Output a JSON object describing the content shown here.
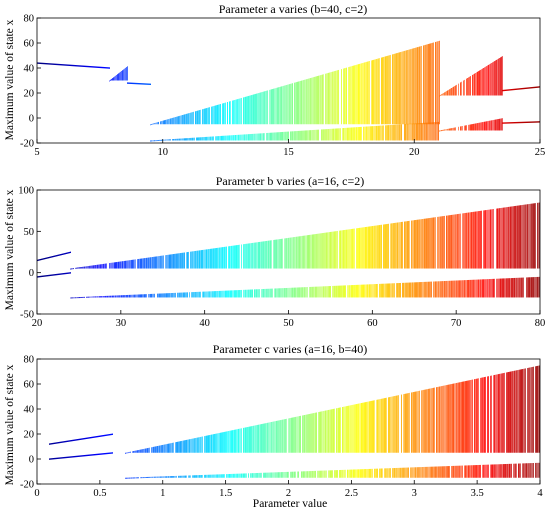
{
  "figure": {
    "xlabel": "Parameter value"
  },
  "chart_data": [
    {
      "type": "scatter",
      "title": "Parameter a varies (b=40, c=2)",
      "xlabel": "",
      "ylabel": "Maximum value of state x",
      "xlim": [
        5,
        25
      ],
      "ylim": [
        -20,
        80
      ],
      "xticks": [
        5,
        10,
        15,
        20,
        25
      ],
      "xtick_labels": [
        "5",
        "10",
        "15",
        "20",
        "25"
      ],
      "yticks": [
        -20,
        0,
        20,
        40,
        60,
        80
      ],
      "ytick_labels": [
        "-20",
        "0",
        "20",
        "40",
        "60",
        "80"
      ],
      "grid": false,
      "colormap": "jet (colored by parameter value)",
      "regions": [
        {
          "x": [
            5,
            7.9
          ],
          "kind": "periodic",
          "upper": [
            44,
            40
          ],
          "lower": null
        },
        {
          "x": [
            7.9,
            8.6
          ],
          "kind": "chaotic-window",
          "upper": [
            30,
            42
          ],
          "lower": null
        },
        {
          "x": [
            8.6,
            9.5
          ],
          "kind": "periodic",
          "upper": [
            28,
            27
          ],
          "lower": null
        },
        {
          "x": [
            9.5,
            21.0
          ],
          "kind": "chaotic",
          "upper": [
            -5,
            62
          ],
          "lower": [
            -18,
            -3
          ]
        },
        {
          "x": [
            21.0,
            23.5
          ],
          "kind": "chaotic",
          "upper": [
            18,
            50
          ],
          "lower": [
            -10,
            0
          ]
        },
        {
          "x": [
            23.5,
            25
          ],
          "kind": "periodic",
          "upper": [
            22,
            25
          ],
          "lower": [
            -4,
            -3
          ]
        }
      ]
    },
    {
      "type": "scatter",
      "title": "Parameter b varies (a=16, c=2)",
      "xlabel": "",
      "ylabel": "Maximum value of state x",
      "xlim": [
        20,
        80
      ],
      "ylim": [
        -50,
        100
      ],
      "xticks": [
        20,
        30,
        40,
        50,
        60,
        70,
        80
      ],
      "xtick_labels": [
        "20",
        "30",
        "40",
        "50",
        "60",
        "70",
        "80"
      ],
      "yticks": [
        -50,
        0,
        50,
        100
      ],
      "ytick_labels": [
        "-50",
        "0",
        "50",
        "100"
      ],
      "grid": false,
      "colormap": "jet (colored by parameter value)",
      "regions": [
        {
          "x": [
            20,
            24
          ],
          "kind": "periodic",
          "upper": [
            15,
            25
          ],
          "lower": [
            -5,
            0
          ]
        },
        {
          "x": [
            24,
            80
          ],
          "kind": "chaotic",
          "upper": [
            5,
            85
          ],
          "lower": [
            -30,
            -5
          ]
        }
      ]
    },
    {
      "type": "scatter",
      "title": "Parameter c varies (a=16, b=40)",
      "xlabel": "Parameter value",
      "ylabel": "Maximum value of state x",
      "xlim": [
        0,
        4
      ],
      "ylim": [
        -20,
        80
      ],
      "xticks": [
        0,
        0.5,
        1,
        1.5,
        2,
        2.5,
        3,
        3.5,
        4
      ],
      "xtick_labels": [
        "0",
        "0.5",
        "1",
        "1.5",
        "2",
        "2.5",
        "3",
        "3.5",
        "4"
      ],
      "yticks": [
        -20,
        0,
        20,
        40,
        60,
        80
      ],
      "ytick_labels": [
        "-20",
        "0",
        "20",
        "40",
        "60",
        "80"
      ],
      "grid": false,
      "colormap": "jet (colored by parameter value)",
      "regions": [
        {
          "x": [
            0.1,
            0.6
          ],
          "kind": "periodic",
          "upper": [
            12,
            20
          ],
          "lower": [
            0,
            5
          ]
        },
        {
          "x": [
            0.7,
            4
          ],
          "kind": "chaotic",
          "upper": [
            5,
            75
          ],
          "lower": [
            -15,
            -3
          ]
        }
      ]
    }
  ]
}
